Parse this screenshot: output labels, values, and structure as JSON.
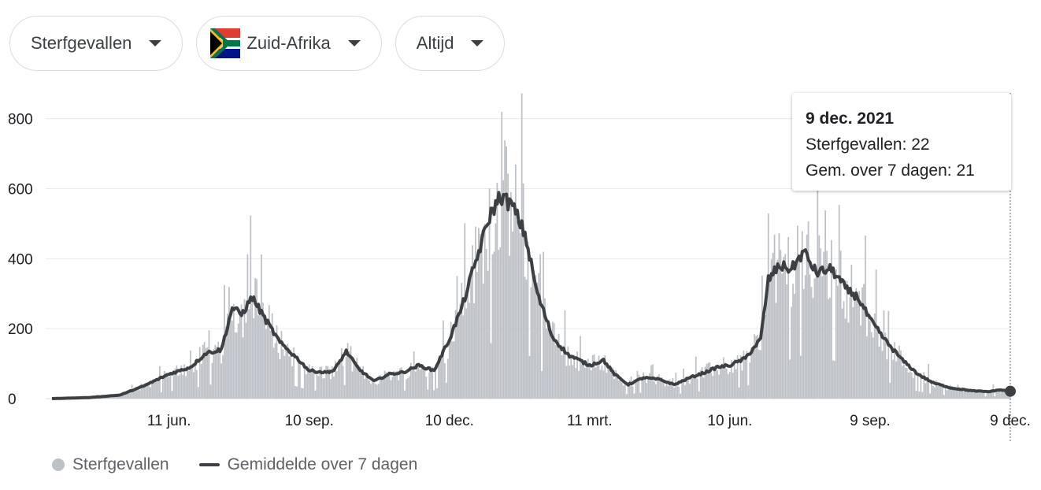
{
  "controls": {
    "metric": "Sterfgevallen",
    "country": "Zuid-Afrika",
    "period": "Altijd"
  },
  "colors": {
    "bars": "#bdc1c6",
    "line": "#3c4043",
    "grid": "#e8eaed"
  },
  "tooltip": {
    "date": "9 dec. 2021",
    "deaths_line": "Sterfgevallen: 22",
    "avg_line": "Gem. over 7 dagen: 21"
  },
  "legend": {
    "bars_label": "Sterfgevallen",
    "line_label": "Gemiddelde over 7 dagen"
  },
  "chart_data": {
    "type": "bar",
    "x_ticks": [
      "11 jun.",
      "10 sep.",
      "10 dec.",
      "11 mrt.",
      "10 jun.",
      "9 sep.",
      "9 dec."
    ],
    "x_tick_dates": [
      "2020-06-11",
      "2020-09-10",
      "2020-12-10",
      "2021-03-11",
      "2021-06-10",
      "2021-09-09",
      "2021-12-09"
    ],
    "x_range": [
      "2020-03-27",
      "2021-12-09"
    ],
    "y_ticks": [
      0,
      200,
      400,
      600,
      800
    ],
    "ylim": [
      0,
      860
    ],
    "grid": true,
    "legend_position": "bottom-left",
    "series": [
      {
        "name": "Sterfgevallen",
        "kind": "bars"
      },
      {
        "name": "Gemiddelde over 7 dagen",
        "kind": "line",
        "points": [
          [
            "2020-03-27",
            0
          ],
          [
            "2020-04-20",
            3
          ],
          [
            "2020-05-10",
            10
          ],
          [
            "2020-05-25",
            35
          ],
          [
            "2020-06-11",
            70
          ],
          [
            "2020-06-25",
            90
          ],
          [
            "2020-07-05",
            130
          ],
          [
            "2020-07-15",
            140
          ],
          [
            "2020-07-22",
            260
          ],
          [
            "2020-07-28",
            240
          ],
          [
            "2020-08-04",
            290
          ],
          [
            "2020-08-12",
            230
          ],
          [
            "2020-08-22",
            160
          ],
          [
            "2020-09-01",
            120
          ],
          [
            "2020-09-10",
            80
          ],
          [
            "2020-09-20",
            75
          ],
          [
            "2020-09-26",
            80
          ],
          [
            "2020-10-04",
            135
          ],
          [
            "2020-10-12",
            85
          ],
          [
            "2020-10-22",
            50
          ],
          [
            "2020-11-01",
            70
          ],
          [
            "2020-11-10",
            75
          ],
          [
            "2020-11-20",
            95
          ],
          [
            "2020-11-30",
            80
          ],
          [
            "2020-12-10",
            170
          ],
          [
            "2020-12-18",
            260
          ],
          [
            "2020-12-27",
            390
          ],
          [
            "2021-01-05",
            520
          ],
          [
            "2021-01-12",
            580
          ],
          [
            "2021-01-20",
            550
          ],
          [
            "2021-01-28",
            470
          ],
          [
            "2021-02-05",
            300
          ],
          [
            "2021-02-15",
            175
          ],
          [
            "2021-02-25",
            125
          ],
          [
            "2021-03-11",
            95
          ],
          [
            "2021-03-20",
            110
          ],
          [
            "2021-03-27",
            70
          ],
          [
            "2021-04-05",
            40
          ],
          [
            "2021-04-15",
            60
          ],
          [
            "2021-04-25",
            55
          ],
          [
            "2021-05-05",
            40
          ],
          [
            "2021-05-15",
            60
          ],
          [
            "2021-05-25",
            75
          ],
          [
            "2021-06-02",
            90
          ],
          [
            "2021-06-10",
            95
          ],
          [
            "2021-06-20",
            115
          ],
          [
            "2021-06-30",
            170
          ],
          [
            "2021-07-05",
            340
          ],
          [
            "2021-07-12",
            380
          ],
          [
            "2021-07-20",
            370
          ],
          [
            "2021-07-28",
            420
          ],
          [
            "2021-08-05",
            360
          ],
          [
            "2021-08-15",
            370
          ],
          [
            "2021-08-25",
            310
          ],
          [
            "2021-09-01",
            290
          ],
          [
            "2021-09-09",
            225
          ],
          [
            "2021-09-20",
            160
          ],
          [
            "2021-09-30",
            110
          ],
          [
            "2021-10-10",
            70
          ],
          [
            "2021-10-20",
            45
          ],
          [
            "2021-11-01",
            30
          ],
          [
            "2021-11-15",
            22
          ],
          [
            "2021-11-25",
            20
          ],
          [
            "2021-12-02",
            25
          ],
          [
            "2021-12-09",
            21
          ]
        ],
        "last_point": {
          "date": "2021-12-09",
          "value": 21
        }
      }
    ]
  }
}
